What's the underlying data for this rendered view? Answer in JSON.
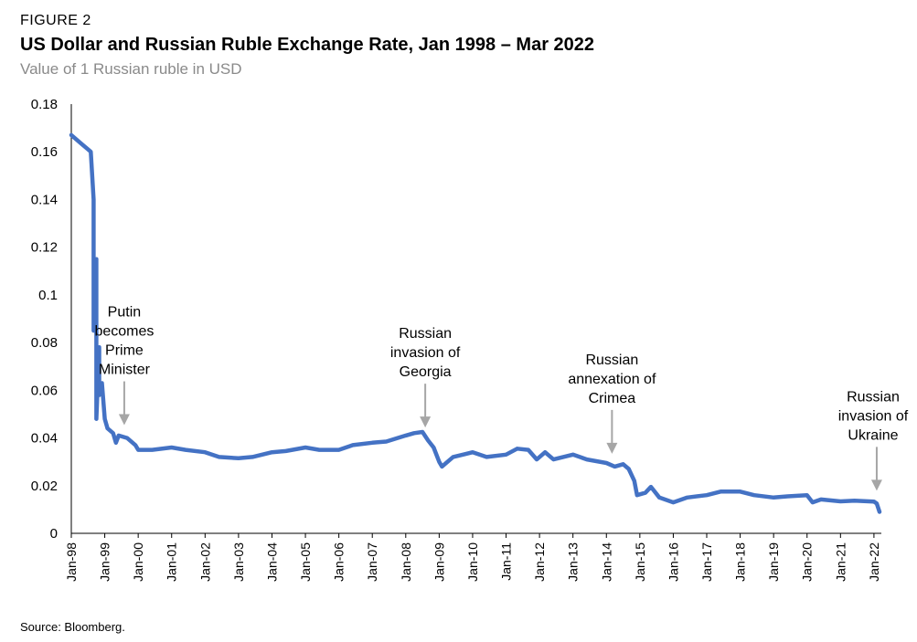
{
  "header": {
    "figure_label": "FIGURE 2",
    "title": "US Dollar and Russian Ruble Exchange Rate, Jan 1998 – Mar 2022",
    "subtitle": "Value of 1 Russian ruble in USD"
  },
  "footer": {
    "source": "Source: Bloomberg."
  },
  "colors": {
    "line": "#4472c4",
    "arrow": "#a6a6a6",
    "axis": "#000000"
  },
  "chart_data": {
    "type": "line",
    "title": "US Dollar and Russian Ruble Exchange Rate, Jan 1998 – Mar 2022",
    "subtitle": "Value of 1 Russian ruble in USD",
    "xlabel": "",
    "ylabel": "",
    "ylim": [
      0,
      0.18
    ],
    "xlim": [
      "1998-01",
      "2022-03"
    ],
    "yticks": [
      0,
      0.02,
      0.04,
      0.06,
      0.08,
      0.1,
      0.12,
      0.14,
      0.16,
      0.18
    ],
    "ytick_labels": [
      "0",
      "0.02",
      "0.04",
      "0.06",
      "0.08",
      "0.1",
      "0.12",
      "0.14",
      "0.16",
      "0.18"
    ],
    "xticks": [
      "1998-01",
      "1999-01",
      "2000-01",
      "2001-01",
      "2002-01",
      "2003-01",
      "2004-01",
      "2005-01",
      "2006-01",
      "2007-01",
      "2008-01",
      "2009-01",
      "2010-01",
      "2011-01",
      "2012-01",
      "2013-01",
      "2014-01",
      "2015-01",
      "2016-01",
      "2017-01",
      "2018-01",
      "2019-01",
      "2020-01",
      "2021-01",
      "2022-01"
    ],
    "xtick_labels": [
      "Jan-98",
      "Jan-99",
      "Jan-00",
      "Jan-01",
      "Jan-02",
      "Jan-03",
      "Jan-04",
      "Jan-05",
      "Jan-06",
      "Jan-07",
      "Jan-08",
      "Jan-09",
      "Jan-10",
      "Jan-11",
      "Jan-12",
      "Jan-13",
      "Jan-14",
      "Jan-15",
      "Jan-16",
      "Jan-17",
      "Jan-18",
      "Jan-19",
      "Jan-20",
      "Jan-21",
      "Jan-22"
    ],
    "grid": false,
    "series": [
      {
        "points": [
          [
            "1998-01",
            0.167
          ],
          [
            "1998-03",
            0.165
          ],
          [
            "1998-05",
            0.163
          ],
          [
            "1998-07",
            0.161
          ],
          [
            "1998-08",
            0.16
          ],
          [
            "1998-09",
            0.14
          ],
          [
            "1998-09",
            0.085
          ],
          [
            "1998-10",
            0.115
          ],
          [
            "1998-10",
            0.048
          ],
          [
            "1998-11",
            0.078
          ],
          [
            "1998-11",
            0.058
          ],
          [
            "1998-12",
            0.063
          ],
          [
            "1999-01",
            0.048
          ],
          [
            "1999-02",
            0.044
          ],
          [
            "1999-04",
            0.042
          ],
          [
            "1999-05",
            0.038
          ],
          [
            "1999-06",
            0.041
          ],
          [
            "1999-09",
            0.04
          ],
          [
            "1999-12",
            0.037
          ],
          [
            "2000-01",
            0.035
          ],
          [
            "2000-06",
            0.035
          ],
          [
            "2001-01",
            0.036
          ],
          [
            "2001-06",
            0.035
          ],
          [
            "2002-01",
            0.034
          ],
          [
            "2002-06",
            0.032
          ],
          [
            "2003-01",
            0.0315
          ],
          [
            "2003-06",
            0.032
          ],
          [
            "2004-01",
            0.034
          ],
          [
            "2004-06",
            0.0345
          ],
          [
            "2005-01",
            0.036
          ],
          [
            "2005-06",
            0.035
          ],
          [
            "2006-01",
            0.035
          ],
          [
            "2006-06",
            0.037
          ],
          [
            "2007-01",
            0.038
          ],
          [
            "2007-06",
            0.0385
          ],
          [
            "2008-01",
            0.041
          ],
          [
            "2008-04",
            0.042
          ],
          [
            "2008-07",
            0.0425
          ],
          [
            "2008-09",
            0.039
          ],
          [
            "2008-11",
            0.036
          ],
          [
            "2009-01",
            0.03
          ],
          [
            "2009-02",
            0.028
          ],
          [
            "2009-06",
            0.032
          ],
          [
            "2010-01",
            0.034
          ],
          [
            "2010-06",
            0.032
          ],
          [
            "2011-01",
            0.033
          ],
          [
            "2011-05",
            0.0355
          ],
          [
            "2011-09",
            0.035
          ],
          [
            "2011-12",
            0.031
          ],
          [
            "2012-03",
            0.034
          ],
          [
            "2012-06",
            0.031
          ],
          [
            "2013-01",
            0.033
          ],
          [
            "2013-06",
            0.031
          ],
          [
            "2014-01",
            0.0295
          ],
          [
            "2014-04",
            0.028
          ],
          [
            "2014-07",
            0.029
          ],
          [
            "2014-09",
            0.027
          ],
          [
            "2014-11",
            0.022
          ],
          [
            "2014-12",
            0.016
          ],
          [
            "2015-03",
            0.017
          ],
          [
            "2015-05",
            0.0195
          ],
          [
            "2015-08",
            0.015
          ],
          [
            "2016-01",
            0.013
          ],
          [
            "2016-06",
            0.015
          ],
          [
            "2017-01",
            0.016
          ],
          [
            "2017-06",
            0.0175
          ],
          [
            "2018-01",
            0.0175
          ],
          [
            "2018-06",
            0.016
          ],
          [
            "2019-01",
            0.015
          ],
          [
            "2019-06",
            0.0155
          ],
          [
            "2020-01",
            0.016
          ],
          [
            "2020-03",
            0.013
          ],
          [
            "2020-06",
            0.0142
          ],
          [
            "2021-01",
            0.0134
          ],
          [
            "2021-06",
            0.0137
          ],
          [
            "2022-01",
            0.0133
          ],
          [
            "2022-02",
            0.0125
          ],
          [
            "2022-03",
            0.009
          ]
        ]
      }
    ],
    "annotations": [
      {
        "x": "1999-08",
        "text_lines": [
          "Putin",
          "becomes",
          "Prime",
          "Minister"
        ]
      },
      {
        "x": "2008-08",
        "text_lines": [
          "Russian",
          "invasion of",
          "Georgia"
        ]
      },
      {
        "x": "2014-03",
        "text_lines": [
          "Russian",
          "annexation of",
          "Crimea"
        ]
      },
      {
        "x": "2022-02",
        "text_lines": [
          "Russian",
          "invasion of",
          "Ukraine"
        ]
      }
    ]
  }
}
